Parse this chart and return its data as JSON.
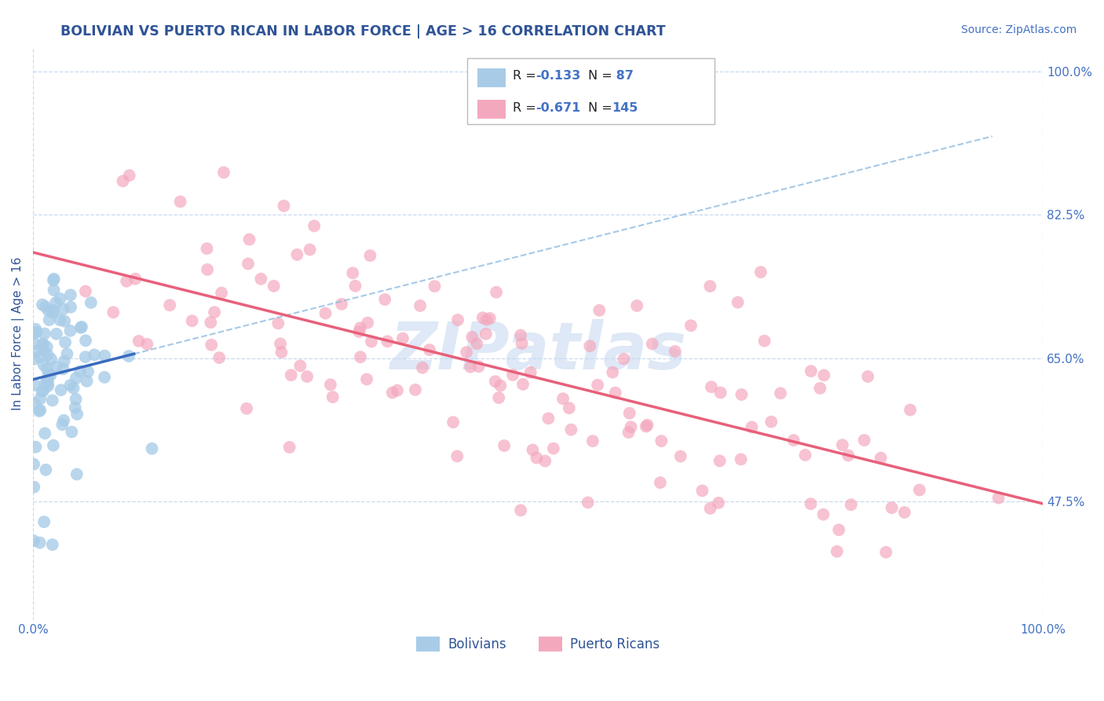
{
  "title": "BOLIVIAN VS PUERTO RICAN IN LABOR FORCE | AGE > 16 CORRELATION CHART",
  "source_text": "Source: ZipAtlas.com",
  "ylabel": "In Labor Force | Age > 16",
  "xlim": [
    0.0,
    1.0
  ],
  "ylim": [
    0.33,
    1.03
  ],
  "xtick_labels": [
    "0.0%",
    "100.0%"
  ],
  "ytick_labels": [
    "47.5%",
    "65.0%",
    "82.5%",
    "100.0%"
  ],
  "ytick_values": [
    0.475,
    0.65,
    0.825,
    1.0
  ],
  "watermark": "ZIPatlas",
  "blue_scatter_color": "#a8cce8",
  "pink_scatter_color": "#f4a8be",
  "trend_blue_solid_color": "#3a6bbf",
  "trend_blue_dash_color": "#90bce0",
  "trend_pink_color": "#e8607a",
  "background_color": "#ffffff",
  "grid_color": "#c8daf0",
  "title_color": "#2f5496",
  "axis_label_color": "#2f5496",
  "tick_color": "#4472c4",
  "watermark_color": "#c8daf0",
  "legend_box_color": "#f0f0f0",
  "legend_border_color": "#cccccc",
  "blue_R": -0.133,
  "blue_N": 87,
  "pink_R": -0.671,
  "pink_N": 145,
  "seed_blue": 7,
  "seed_pink": 13
}
